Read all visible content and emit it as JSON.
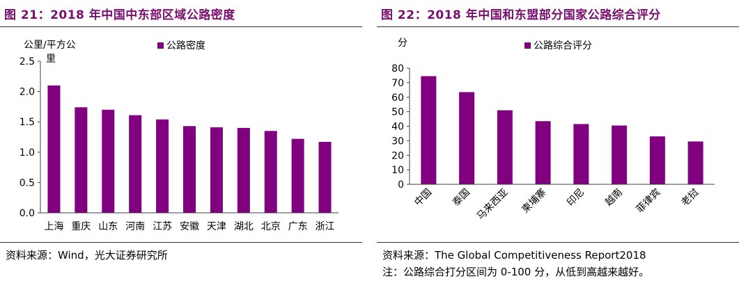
{
  "left_panel": {
    "title": "图 21：2018 年中国中东部区域公路密度",
    "source": "资料来源：Wind，光大证券研究所"
  },
  "right_panel": {
    "title": "图 22：2018 年中国和东盟部分国家公路综合评分",
    "source": "资料来源：The Global Competitiveness Report2018",
    "note": "注：公路综合打分区间为 0-100 分，从低到高越来越好。"
  },
  "colors": {
    "bar": "#800080",
    "title": "#7a0e6f",
    "axis": "#404040"
  },
  "chart_data": [
    {
      "type": "bar",
      "ylabel_line1": "公里/平方公",
      "ylabel_line2": "里",
      "legend_label": "公路密度",
      "legend_position": "top",
      "categories": [
        "上海",
        "重庆",
        "山东",
        "河南",
        "江苏",
        "安徽",
        "天津",
        "湖北",
        "北京",
        "广东",
        "浙江"
      ],
      "series": [
        {
          "name": "公路密度",
          "values": [
            2.1,
            1.74,
            1.7,
            1.61,
            1.54,
            1.43,
            1.41,
            1.4,
            1.35,
            1.22,
            1.17
          ]
        }
      ],
      "ylim": [
        0,
        2.5
      ],
      "yticks": [
        "0.0",
        "0.5",
        "1.0",
        "1.5",
        "2.0",
        "2.5"
      ],
      "grid": false
    },
    {
      "type": "bar",
      "ylabel": "分",
      "legend_label": "公路综合评分",
      "legend_position": "top",
      "categories": [
        "中国",
        "泰国",
        "马来西亚",
        "柬埔寨",
        "印尼",
        "越南",
        "菲律宾",
        "老挝"
      ],
      "series": [
        {
          "name": "公路综合评分",
          "values": [
            74.5,
            63.5,
            51,
            43.5,
            41.5,
            40.5,
            33,
            29.5
          ]
        }
      ],
      "ylim": [
        0,
        80
      ],
      "yticks": [
        "0",
        "10",
        "20",
        "30",
        "40",
        "50",
        "60",
        "70",
        "80"
      ],
      "grid": false
    }
  ]
}
